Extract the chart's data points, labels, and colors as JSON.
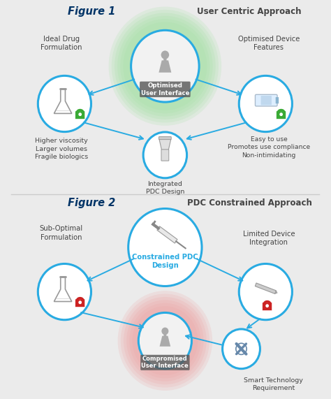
{
  "bg_color": "#ebebeb",
  "fig_width": 4.74,
  "fig_height": 5.71,
  "fig1_label": "Figure 1",
  "fig2_label": "Figure 2",
  "top_right_label": "User Centric Approach",
  "bottom_right_label": "PDC Constrained Approach",
  "center_top_circle_text": "Optimised\nUser Interface",
  "center_bottom_circle_text": "Constrained PDC\nDesign",
  "center_mid_circle_text": "Integrated\nPDC Design",
  "bottom_center_circle_text": "Compromised\nUser Interface",
  "top_left_text1": "Ideal Drug\nFormulation",
  "top_left_text2": "Higher viscosity\nLarger volumes\nFragile biologics",
  "top_right_text1": "Optimised Device\nFeatures",
  "top_right_text2": "Easy to use\nPromotes use compliance\nNon-intimidating",
  "bottom_left_text1": "Sub-Optimal\nFormulation",
  "bottom_right_text1": "Limited Device\nIntegration",
  "bottom_right_text2": "Smart Technology\nRequirement",
  "circle_color": "#29ABE2",
  "circle_lw": 2.2,
  "green_glow": "#a0e0a0",
  "red_glow": "#f0a0a0",
  "arrow_color": "#29ABE2",
  "green_lock": "#3aaa35",
  "red_lock": "#cc2222",
  "text_color": "#444444",
  "fig_label_color": "#003366",
  "person_color": "#aaaaaa",
  "divider_color": "#cccccc"
}
